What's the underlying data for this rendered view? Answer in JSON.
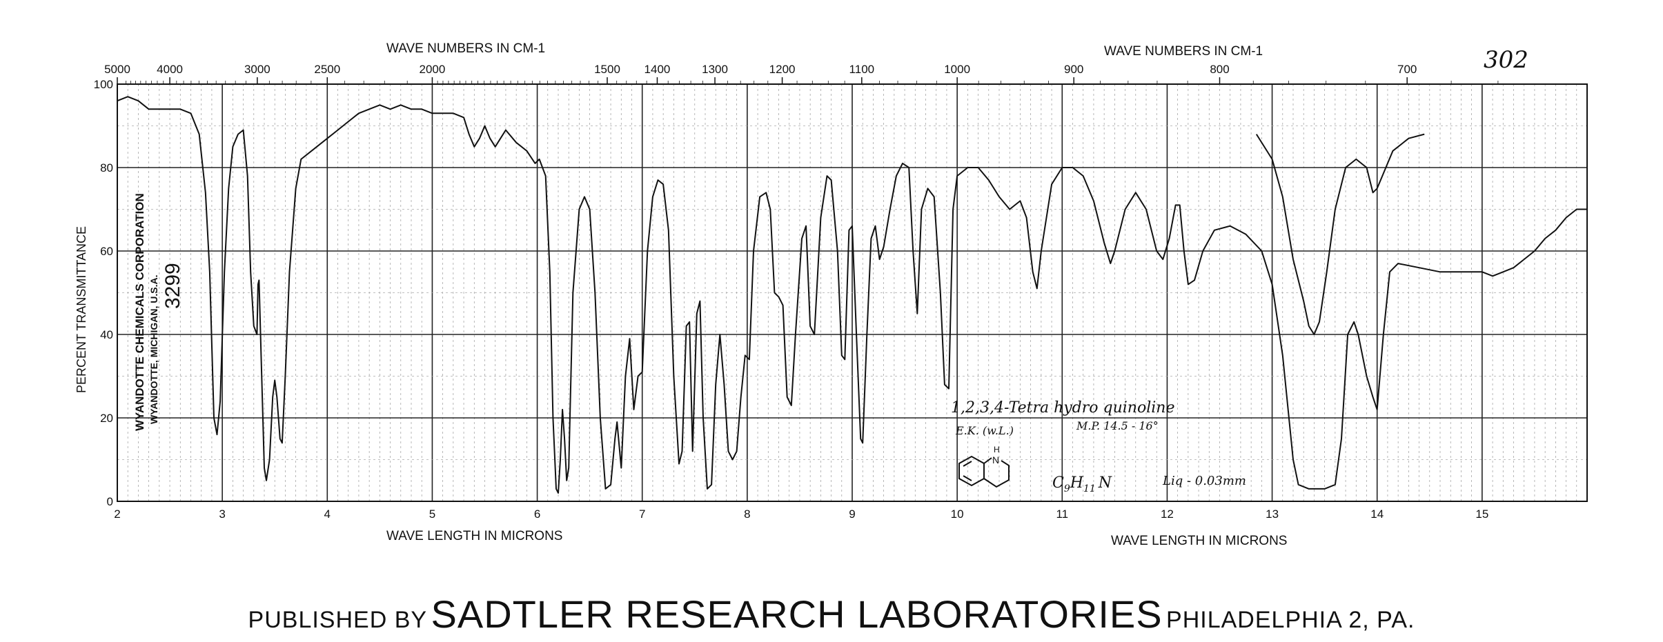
{
  "chart_data": {
    "type": "line",
    "title": "",
    "page_number": "302",
    "top_axis_label_left": "WAVE NUMBERS IN CM-1",
    "top_axis_label_right": "WAVE NUMBERS IN CM-1",
    "xlabel_left": "WAVE LENGTH IN MICRONS",
    "xlabel_right": "WAVE LENGTH IN MICRONS",
    "ylabel": "PERCENT TRANSMITTANCE",
    "xlim": [
      2,
      16
    ],
    "ylim": [
      0,
      100
    ],
    "grid": true,
    "x_ticks": [
      {
        "value": 2,
        "label": "2"
      },
      {
        "value": 3,
        "label": "3"
      },
      {
        "value": 4,
        "label": "4"
      },
      {
        "value": 5,
        "label": "5"
      },
      {
        "value": 6,
        "label": "6"
      },
      {
        "value": 7,
        "label": "7"
      },
      {
        "value": 8,
        "label": "8"
      },
      {
        "value": 9,
        "label": "9"
      },
      {
        "value": 10,
        "label": "10"
      },
      {
        "value": 11,
        "label": "11"
      },
      {
        "value": 12,
        "label": "12"
      },
      {
        "value": 13,
        "label": "13"
      },
      {
        "value": 14,
        "label": "14"
      },
      {
        "value": 15,
        "label": "15"
      }
    ],
    "y_ticks": [
      {
        "value": 100,
        "label": "100"
      },
      {
        "value": 80,
        "label": "80"
      },
      {
        "value": 60,
        "label": "60"
      },
      {
        "value": 40,
        "label": "40"
      },
      {
        "value": 20,
        "label": "20"
      },
      {
        "value": 0,
        "label": "0"
      }
    ],
    "top_ticks": [
      {
        "value": 5000,
        "label": "5000"
      },
      {
        "value": 4000,
        "label": "4000"
      },
      {
        "value": 3000,
        "label": "3000"
      },
      {
        "value": 2500,
        "label": "2500"
      },
      {
        "value": 2000,
        "label": "2000"
      },
      {
        "value": 1500,
        "label": "1500"
      },
      {
        "value": 1400,
        "label": "1400"
      },
      {
        "value": 1300,
        "label": "1300"
      },
      {
        "value": 1200,
        "label": "1200"
      },
      {
        "value": 1100,
        "label": "1100"
      },
      {
        "value": 1000,
        "label": "1000"
      },
      {
        "value": 900,
        "label": "900"
      },
      {
        "value": 800,
        "label": "800"
      },
      {
        "value": 700,
        "label": "700"
      }
    ],
    "series": [
      {
        "points": [
          [
            2.0,
            96
          ],
          [
            2.1,
            97
          ],
          [
            2.2,
            96
          ],
          [
            2.3,
            94
          ],
          [
            2.4,
            94
          ],
          [
            2.5,
            94
          ],
          [
            2.6,
            94
          ],
          [
            2.7,
            93
          ],
          [
            2.78,
            88
          ],
          [
            2.84,
            74
          ],
          [
            2.88,
            55
          ],
          [
            2.92,
            20
          ],
          [
            2.95,
            16
          ],
          [
            2.98,
            24
          ],
          [
            3.02,
            55
          ],
          [
            3.06,
            75
          ],
          [
            3.1,
            85
          ],
          [
            3.15,
            88
          ],
          [
            3.2,
            89
          ],
          [
            3.24,
            78
          ],
          [
            3.27,
            55
          ],
          [
            3.3,
            42
          ],
          [
            3.33,
            40
          ],
          [
            3.34,
            52
          ],
          [
            3.35,
            53
          ],
          [
            3.37,
            35
          ],
          [
            3.4,
            8
          ],
          [
            3.42,
            5
          ],
          [
            3.45,
            10
          ],
          [
            3.48,
            25
          ],
          [
            3.5,
            29
          ],
          [
            3.52,
            25
          ],
          [
            3.55,
            15
          ],
          [
            3.57,
            14
          ],
          [
            3.6,
            30
          ],
          [
            3.64,
            55
          ],
          [
            3.7,
            75
          ],
          [
            3.75,
            82
          ],
          [
            3.85,
            84
          ],
          [
            4.0,
            87
          ],
          [
            4.1,
            89
          ],
          [
            4.2,
            91
          ],
          [
            4.3,
            93
          ],
          [
            4.4,
            94
          ],
          [
            4.5,
            95
          ],
          [
            4.6,
            94
          ],
          [
            4.7,
            95
          ],
          [
            4.8,
            94
          ],
          [
            4.9,
            94
          ],
          [
            5.0,
            93
          ],
          [
            5.1,
            93
          ],
          [
            5.2,
            93
          ],
          [
            5.3,
            92
          ],
          [
            5.35,
            88
          ],
          [
            5.4,
            85
          ],
          [
            5.45,
            87
          ],
          [
            5.5,
            90
          ],
          [
            5.55,
            87
          ],
          [
            5.6,
            85
          ],
          [
            5.65,
            87
          ],
          [
            5.7,
            89
          ],
          [
            5.8,
            86
          ],
          [
            5.9,
            84
          ],
          [
            5.98,
            81
          ],
          [
            6.02,
            82
          ],
          [
            6.08,
            78
          ],
          [
            6.12,
            55
          ],
          [
            6.15,
            20
          ],
          [
            6.18,
            3
          ],
          [
            6.2,
            2
          ],
          [
            6.22,
            10
          ],
          [
            6.24,
            22
          ],
          [
            6.26,
            15
          ],
          [
            6.28,
            5
          ],
          [
            6.3,
            8
          ],
          [
            6.34,
            50
          ],
          [
            6.4,
            70
          ],
          [
            6.45,
            73
          ],
          [
            6.5,
            70
          ],
          [
            6.55,
            50
          ],
          [
            6.6,
            20
          ],
          [
            6.65,
            3
          ],
          [
            6.7,
            4
          ],
          [
            6.74,
            15
          ],
          [
            6.76,
            19
          ],
          [
            6.8,
            8
          ],
          [
            6.84,
            30
          ],
          [
            6.88,
            39
          ],
          [
            6.92,
            22
          ],
          [
            6.96,
            30
          ],
          [
            7.0,
            31
          ],
          [
            7.05,
            60
          ],
          [
            7.1,
            73
          ],
          [
            7.15,
            77
          ],
          [
            7.2,
            76
          ],
          [
            7.25,
            65
          ],
          [
            7.3,
            30
          ],
          [
            7.35,
            9
          ],
          [
            7.38,
            12
          ],
          [
            7.42,
            42
          ],
          [
            7.45,
            43
          ],
          [
            7.48,
            12
          ],
          [
            7.52,
            45
          ],
          [
            7.55,
            48
          ],
          [
            7.58,
            20
          ],
          [
            7.62,
            3
          ],
          [
            7.66,
            4
          ],
          [
            7.7,
            28
          ],
          [
            7.74,
            40
          ],
          [
            7.78,
            28
          ],
          [
            7.82,
            12
          ],
          [
            7.86,
            10
          ],
          [
            7.9,
            12
          ],
          [
            7.94,
            25
          ],
          [
            7.98,
            35
          ],
          [
            8.02,
            34
          ],
          [
            8.06,
            60
          ],
          [
            8.12,
            73
          ],
          [
            8.18,
            74
          ],
          [
            8.22,
            70
          ],
          [
            8.26,
            50
          ],
          [
            8.3,
            49
          ],
          [
            8.34,
            47
          ],
          [
            8.38,
            25
          ],
          [
            8.42,
            23
          ],
          [
            8.46,
            40
          ],
          [
            8.52,
            63
          ],
          [
            8.56,
            66
          ],
          [
            8.6,
            42
          ],
          [
            8.64,
            40
          ],
          [
            8.7,
            68
          ],
          [
            8.76,
            78
          ],
          [
            8.8,
            77
          ],
          [
            8.86,
            60
          ],
          [
            8.9,
            35
          ],
          [
            8.93,
            34
          ],
          [
            8.97,
            65
          ],
          [
            9.0,
            66
          ],
          [
            9.04,
            40
          ],
          [
            9.08,
            15
          ],
          [
            9.1,
            14
          ],
          [
            9.14,
            40
          ],
          [
            9.18,
            63
          ],
          [
            9.22,
            66
          ],
          [
            9.26,
            58
          ],
          [
            9.3,
            61
          ],
          [
            9.36,
            70
          ],
          [
            9.42,
            78
          ],
          [
            9.48,
            81
          ],
          [
            9.54,
            80
          ],
          [
            9.58,
            60
          ],
          [
            9.62,
            45
          ],
          [
            9.66,
            70
          ],
          [
            9.72,
            75
          ],
          [
            9.78,
            73
          ],
          [
            9.84,
            50
          ],
          [
            9.88,
            28
          ],
          [
            9.92,
            27
          ],
          [
            9.96,
            70
          ],
          [
            10.0,
            78
          ],
          [
            10.1,
            80
          ],
          [
            10.2,
            80
          ],
          [
            10.3,
            77
          ],
          [
            10.4,
            73
          ],
          [
            10.5,
            70
          ],
          [
            10.6,
            72
          ],
          [
            10.66,
            68
          ],
          [
            10.72,
            55
          ],
          [
            10.76,
            51
          ],
          [
            10.8,
            60
          ],
          [
            10.9,
            76
          ],
          [
            11.0,
            80
          ],
          [
            11.1,
            80
          ],
          [
            11.2,
            78
          ],
          [
            11.3,
            72
          ],
          [
            11.4,
            62
          ],
          [
            11.46,
            57
          ],
          [
            11.5,
            60
          ],
          [
            11.6,
            70
          ],
          [
            11.7,
            74
          ],
          [
            11.8,
            70
          ],
          [
            11.9,
            60
          ],
          [
            11.96,
            58
          ],
          [
            12.02,
            63
          ],
          [
            12.08,
            71
          ],
          [
            12.12,
            71
          ],
          [
            12.16,
            60
          ],
          [
            12.2,
            52
          ],
          [
            12.26,
            53
          ],
          [
            12.34,
            60
          ],
          [
            12.45,
            65
          ],
          [
            12.6,
            66
          ],
          [
            12.75,
            64
          ],
          [
            12.9,
            60
          ],
          [
            13.0,
            52
          ],
          [
            13.1,
            35
          ],
          [
            13.2,
            10
          ],
          [
            13.25,
            4
          ],
          [
            13.35,
            3
          ],
          [
            13.5,
            3
          ],
          [
            13.6,
            4
          ],
          [
            13.66,
            15
          ],
          [
            13.72,
            40
          ],
          [
            13.78,
            43
          ],
          [
            13.82,
            40
          ],
          [
            13.9,
            30
          ],
          [
            13.96,
            25
          ],
          [
            14.0,
            22
          ],
          [
            14.06,
            40
          ],
          [
            14.12,
            55
          ],
          [
            14.2,
            57
          ],
          [
            14.4,
            56
          ],
          [
            14.6,
            55
          ],
          [
            14.8,
            55
          ],
          [
            14.9,
            55
          ],
          [
            15.0,
            55
          ],
          [
            15.1,
            54
          ],
          [
            15.2,
            55
          ],
          [
            15.3,
            56
          ],
          [
            15.4,
            58
          ],
          [
            15.5,
            60
          ],
          [
            15.6,
            63
          ],
          [
            15.7,
            65
          ],
          [
            15.8,
            68
          ],
          [
            15.9,
            70
          ],
          [
            16.0,
            70
          ]
        ]
      },
      {
        "points": [
          [
            12.85,
            88
          ],
          [
            13.0,
            82
          ],
          [
            13.1,
            73
          ],
          [
            13.2,
            58
          ],
          [
            13.3,
            48
          ],
          [
            13.35,
            42
          ],
          [
            13.4,
            40
          ],
          [
            13.45,
            43
          ],
          [
            13.52,
            55
          ],
          [
            13.6,
            70
          ],
          [
            13.7,
            80
          ],
          [
            13.8,
            82
          ],
          [
            13.9,
            80
          ],
          [
            13.96,
            74
          ],
          [
            14.0,
            75
          ],
          [
            14.05,
            78
          ],
          [
            14.15,
            84
          ],
          [
            14.3,
            87
          ],
          [
            14.45,
            88
          ]
        ]
      }
    ]
  },
  "sample": {
    "name": "1,2,3,4-Tetra hydro quinoline",
    "submitter": "E.K. (w.L.)",
    "melting_point": "M.P. 14.5 - 16°",
    "formula_c": "C",
    "formula_c_sub": "9",
    "formula_h": "H",
    "formula_h_sub": "11",
    "formula_n": "N",
    "thickness": "Liq - 0.03mm",
    "structure_atom": "N",
    "structure_h": "H"
  },
  "stamp": {
    "company": "WYANDOTTE CHEMICALS CORPORATION",
    "location": "WYANDOTTE, MICHIGAN, U.S.A.",
    "number": "3299"
  },
  "footer": {
    "published_by": "PUBLISHED BY",
    "publisher": "SADTLER RESEARCH LABORATORIES",
    "city": "PHILADELPHIA 2, PA."
  }
}
